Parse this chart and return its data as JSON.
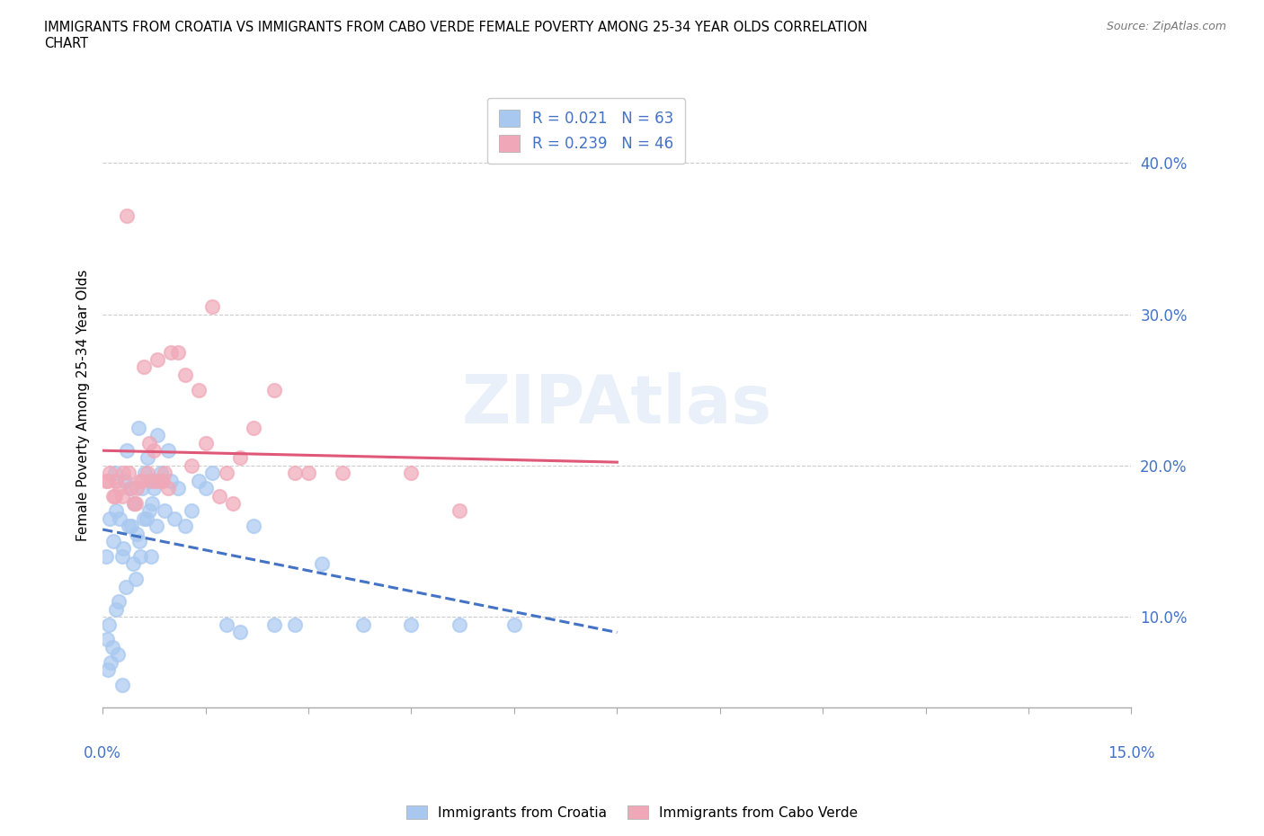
{
  "title": "IMMIGRANTS FROM CROATIA VS IMMIGRANTS FROM CABO VERDE FEMALE POVERTY AMONG 25-34 YEAR OLDS CORRELATION\nCHART",
  "source_text": "Source: ZipAtlas.com",
  "ylabel": "Female Poverty Among 25-34 Year Olds",
  "xlim": [
    0.0,
    15.0
  ],
  "ylim": [
    4.0,
    44.0
  ],
  "yticks": [
    10.0,
    20.0,
    30.0,
    40.0
  ],
  "ytick_labels": [
    "10.0%",
    "20.0%",
    "30.0%",
    "40.0%"
  ],
  "xtick_positions": [
    0.0,
    1.5,
    3.0,
    4.5,
    6.0,
    7.5,
    9.0,
    10.5,
    12.0,
    13.5,
    15.0
  ],
  "watermark": "ZIPAtlas",
  "croatia_color": "#a8c8f0",
  "cabo_verde_color": "#f0a8b8",
  "croatia_line_color": "#4472c4",
  "cabo_verde_line_color": "#e05878",
  "legend_label1": "Immigrants from Croatia",
  "legend_label2": "Immigrants from Cabo Verde",
  "croatia_x": [
    0.05,
    0.08,
    0.1,
    0.12,
    0.15,
    0.18,
    0.2,
    0.22,
    0.25,
    0.28,
    0.3,
    0.32,
    0.35,
    0.38,
    0.4,
    0.42,
    0.45,
    0.48,
    0.5,
    0.52,
    0.55,
    0.58,
    0.6,
    0.62,
    0.65,
    0.68,
    0.7,
    0.72,
    0.75,
    0.78,
    0.8,
    0.85,
    0.9,
    0.95,
    1.0,
    1.05,
    1.1,
    1.2,
    1.3,
    1.4,
    1.5,
    1.6,
    1.8,
    2.0,
    2.2,
    2.5,
    2.8,
    3.2,
    3.8,
    4.5,
    5.2,
    6.0,
    0.06,
    0.09,
    0.14,
    0.19,
    0.24,
    0.29,
    0.34,
    0.44,
    0.54,
    0.64,
    0.74
  ],
  "croatia_y": [
    14.0,
    6.5,
    16.5,
    7.0,
    15.0,
    19.5,
    17.0,
    7.5,
    16.5,
    5.5,
    14.5,
    19.0,
    21.0,
    16.0,
    18.5,
    16.0,
    17.5,
    12.5,
    15.5,
    22.5,
    14.0,
    18.5,
    16.5,
    19.5,
    20.5,
    17.0,
    14.0,
    17.5,
    19.0,
    16.0,
    22.0,
    19.5,
    17.0,
    21.0,
    19.0,
    16.5,
    18.5,
    16.0,
    17.0,
    19.0,
    18.5,
    19.5,
    9.5,
    9.0,
    16.0,
    9.5,
    9.5,
    13.5,
    9.5,
    9.5,
    9.5,
    9.5,
    8.5,
    9.5,
    8.0,
    10.5,
    11.0,
    14.0,
    12.0,
    13.5,
    15.0,
    16.5,
    18.5
  ],
  "cabo_verde_x": [
    0.05,
    0.1,
    0.15,
    0.2,
    0.25,
    0.3,
    0.35,
    0.4,
    0.45,
    0.5,
    0.55,
    0.6,
    0.65,
    0.7,
    0.75,
    0.8,
    0.85,
    0.9,
    0.95,
    1.0,
    1.1,
    1.2,
    1.3,
    1.4,
    1.5,
    1.6,
    1.7,
    1.8,
    1.9,
    2.0,
    2.2,
    2.5,
    2.8,
    3.0,
    3.5,
    4.5,
    5.2,
    0.08,
    0.18,
    0.28,
    0.38,
    0.48,
    0.58,
    0.68,
    0.78,
    0.88
  ],
  "cabo_verde_y": [
    19.0,
    19.5,
    18.0,
    19.0,
    18.5,
    19.5,
    36.5,
    18.5,
    17.5,
    18.5,
    19.0,
    26.5,
    19.5,
    19.0,
    21.0,
    27.0,
    19.0,
    19.5,
    18.5,
    27.5,
    27.5,
    26.0,
    20.0,
    25.0,
    21.5,
    30.5,
    18.0,
    19.5,
    17.5,
    20.5,
    22.5,
    25.0,
    19.5,
    19.5,
    19.5,
    19.5,
    17.0,
    19.0,
    18.0,
    18.0,
    19.5,
    17.5,
    19.0,
    21.5,
    19.0,
    19.0
  ]
}
